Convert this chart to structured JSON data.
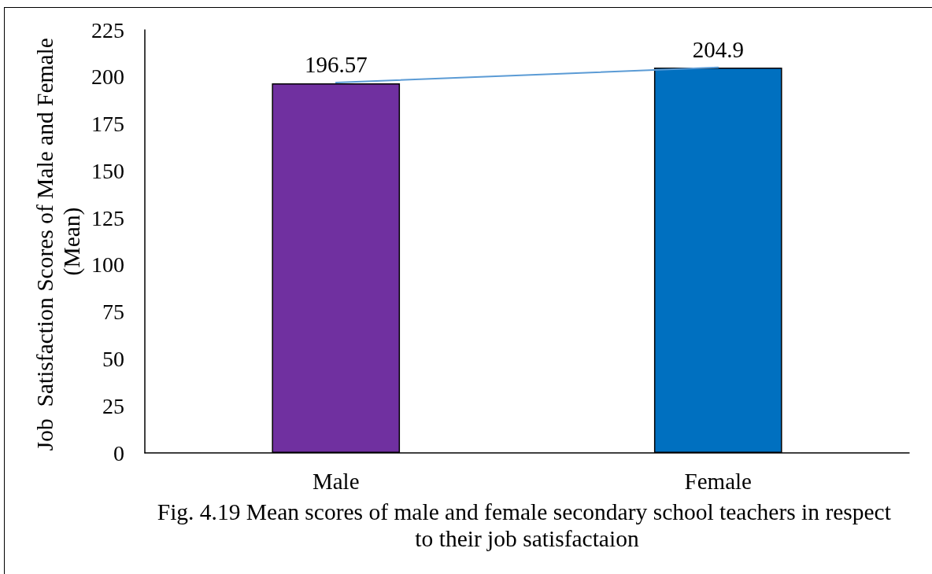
{
  "chart_data": {
    "type": "bar",
    "ylabel": "Job  Satisfaction Scores of Male and Female (Mean)",
    "categories": [
      "Male",
      "Female"
    ],
    "series": [
      {
        "colors": [
          "#7030a0",
          "#0070c0"
        ],
        "values": [
          196.57,
          204.9
        ],
        "value_labels": [
          "196.57",
          "204.9"
        ]
      },
      {
        "type": "line",
        "color": "#5b9bd5",
        "values": [
          197,
          205
        ]
      }
    ],
    "ylim": [
      0,
      225
    ],
    "yticks": [
      0,
      25,
      50,
      75,
      100,
      125,
      150,
      175,
      200,
      225
    ],
    "marker": "none",
    "annotations": [
      "Fig. 4.19 Mean scores of male and female secondary school teachers in respect to their job satisfactaion"
    ]
  }
}
